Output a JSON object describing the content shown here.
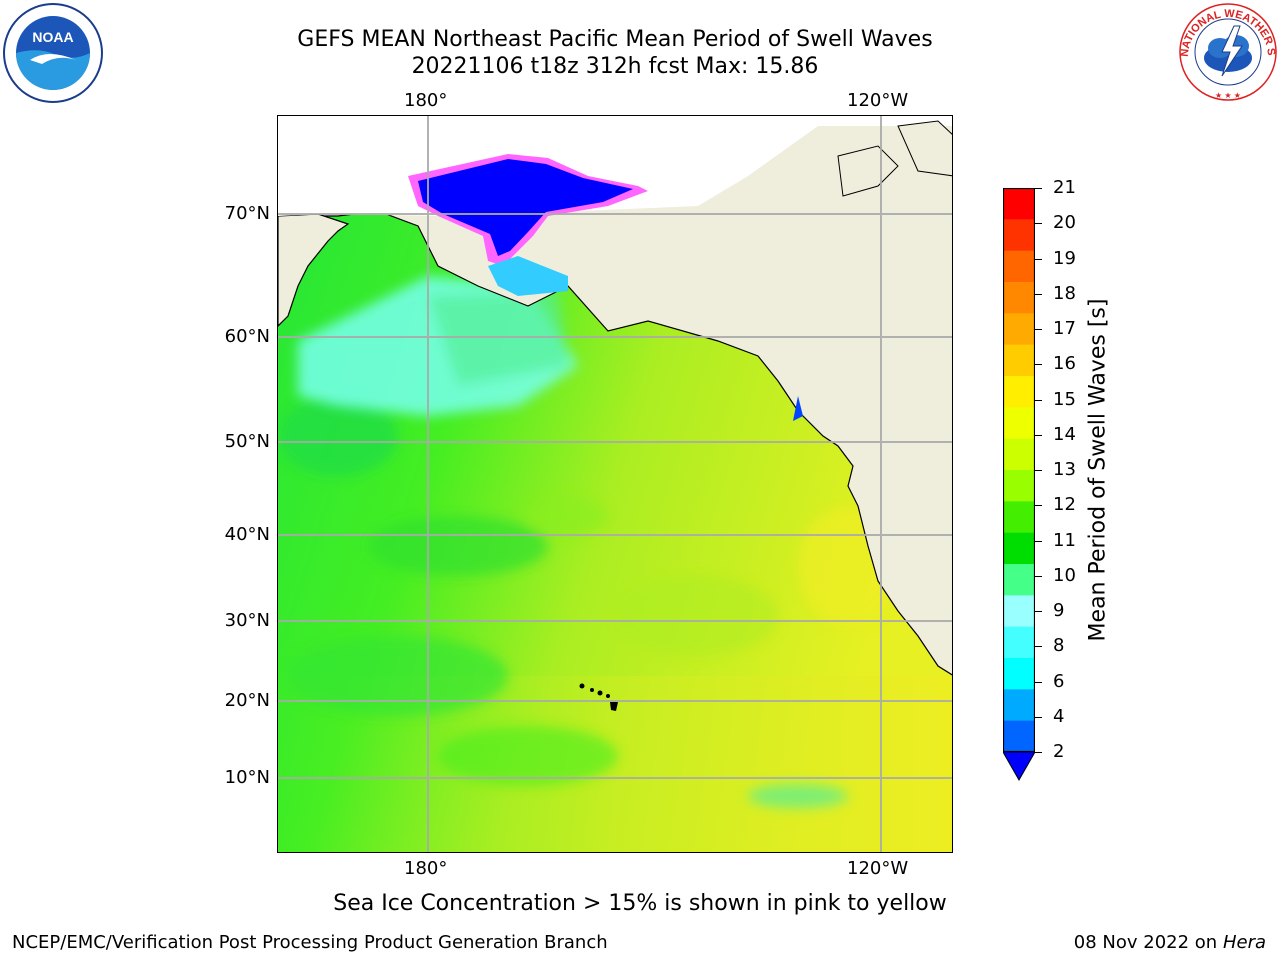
{
  "title": {
    "line1": "GEFS MEAN Northeast Pacific Mean Period of Swell Waves",
    "line2": "20221106 t18z 312h fcst   Max: 15.86"
  },
  "logos": {
    "left": {
      "text": "NOAA",
      "ring_text": "NATIONAL OCEANIC AND ATMOSPHERIC ADMINISTRATION · U.S. DEPARTMENT OF COMMERCE"
    },
    "right": {
      "ring_text": "NATIONAL WEATHER SERVICE"
    }
  },
  "map": {
    "lon_labels": [
      "180°",
      "120°W"
    ],
    "lat_labels": [
      "70°N",
      "60°N",
      "50°N",
      "40°N",
      "30°N",
      "20°N",
      "10°N"
    ],
    "colors": {
      "land": "#efeedd",
      "ocean_green": "#33ee33",
      "ocean_yellow": "#eeee22",
      "ice": "#0000ff",
      "ice_edge": "#ff55ff"
    }
  },
  "colorbar": {
    "title": "Mean Period of Swell Waves [s]",
    "labels": [
      "21",
      "20",
      "19",
      "18",
      "17",
      "16",
      "15",
      "14",
      "13",
      "12",
      "11",
      "10",
      "9",
      "8",
      "6",
      "4",
      "2"
    ],
    "colors": [
      "#ff0000",
      "#ff3300",
      "#ff6600",
      "#ff8800",
      "#ffaa00",
      "#ffcc00",
      "#ffee00",
      "#eeff00",
      "#ccff00",
      "#99ff00",
      "#44ee00",
      "#00dd00",
      "#44ff88",
      "#99ffff",
      "#44ffff",
      "#00ffff",
      "#00aaff",
      "#0066ff"
    ],
    "extend_color": "#0000ff"
  },
  "note": "Sea Ice Concentration > 15% is shown in pink to yellow",
  "footer": {
    "left": "NCEP/EMC/Verification Post Processing Product Generation Branch",
    "right_date": "08 Nov 2022 on",
    "right_host": "Hera"
  }
}
